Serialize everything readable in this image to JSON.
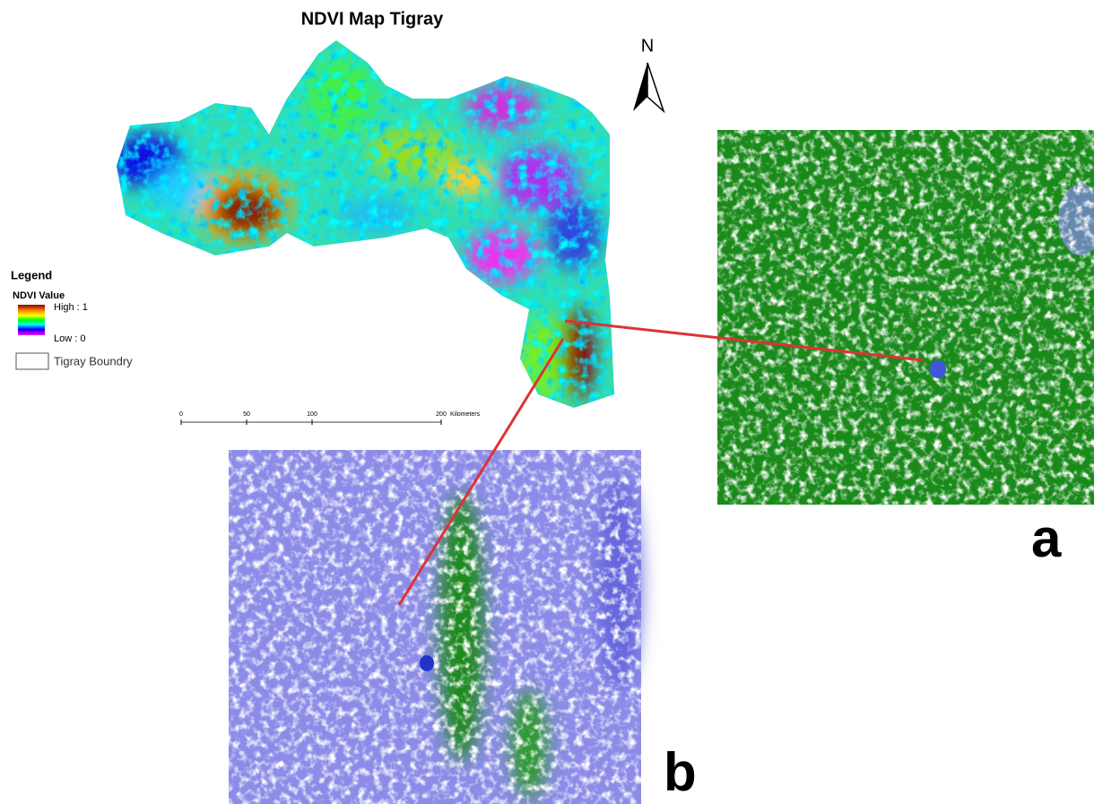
{
  "title": "NDVI Map Tigray",
  "north_arrow": {
    "label": "N"
  },
  "legend": {
    "title": "Legend",
    "subtitle": "NDVI Value",
    "high": "High : 1",
    "low": "Low : 0",
    "boundary": "Tigray Boundry"
  },
  "scale_bar": {
    "labels": [
      "0",
      "50",
      "100",
      "200"
    ],
    "unit": "Kilometers"
  },
  "panels": [
    {
      "label": "a"
    },
    {
      "label": "b"
    }
  ]
}
